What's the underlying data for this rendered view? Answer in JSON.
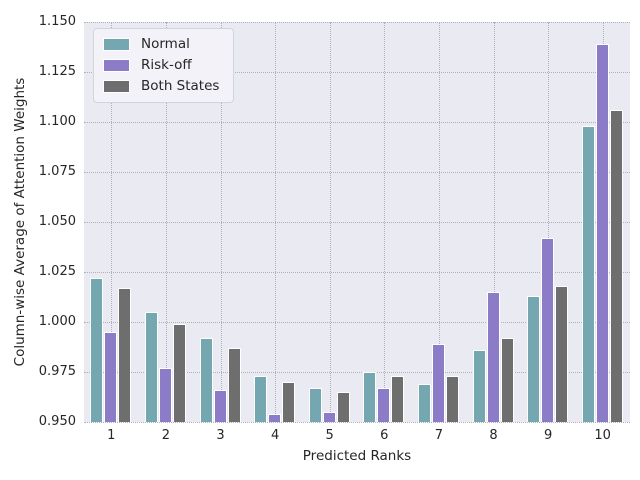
{
  "chart_data": {
    "type": "bar",
    "title": "",
    "xlabel": "Predicted Ranks",
    "ylabel": "Column-wise Average of Attention Weights",
    "categories": [
      "1",
      "2",
      "3",
      "4",
      "5",
      "6",
      "7",
      "8",
      "9",
      "10"
    ],
    "series": [
      {
        "name": "Normal",
        "color": "#74a7b0",
        "values": [
          1.022,
          1.005,
          0.992,
          0.973,
          0.967,
          0.975,
          0.969,
          0.986,
          1.013,
          1.098
        ]
      },
      {
        "name": "Risk-off",
        "color": "#8c7bc6",
        "values": [
          0.995,
          0.977,
          0.966,
          0.954,
          0.955,
          0.967,
          0.989,
          1.015,
          1.042,
          1.139
        ]
      },
      {
        "name": "Both States",
        "color": "#6e6e6e",
        "values": [
          1.017,
          0.999,
          0.987,
          0.97,
          0.965,
          0.973,
          0.973,
          0.992,
          1.018,
          1.106
        ]
      }
    ],
    "ylim": [
      0.95,
      1.15
    ],
    "ytick_step": 0.025,
    "ytick_labels": [
      "0.950",
      "0.975",
      "1.000",
      "1.025",
      "1.050",
      "1.075",
      "1.100",
      "1.125",
      "1.150"
    ],
    "grid": true,
    "grid_style": "dotted",
    "legend_position": "upper left",
    "style_colors": {
      "plot_background": "#eaeaf2",
      "figure_background": "#ffffff",
      "gridline": "#b0b0b8",
      "text": "#262626",
      "legend_background": "#f3f2f8",
      "legend_border": "#d3d3dc",
      "bar_edge": "#ffffff"
    }
  }
}
